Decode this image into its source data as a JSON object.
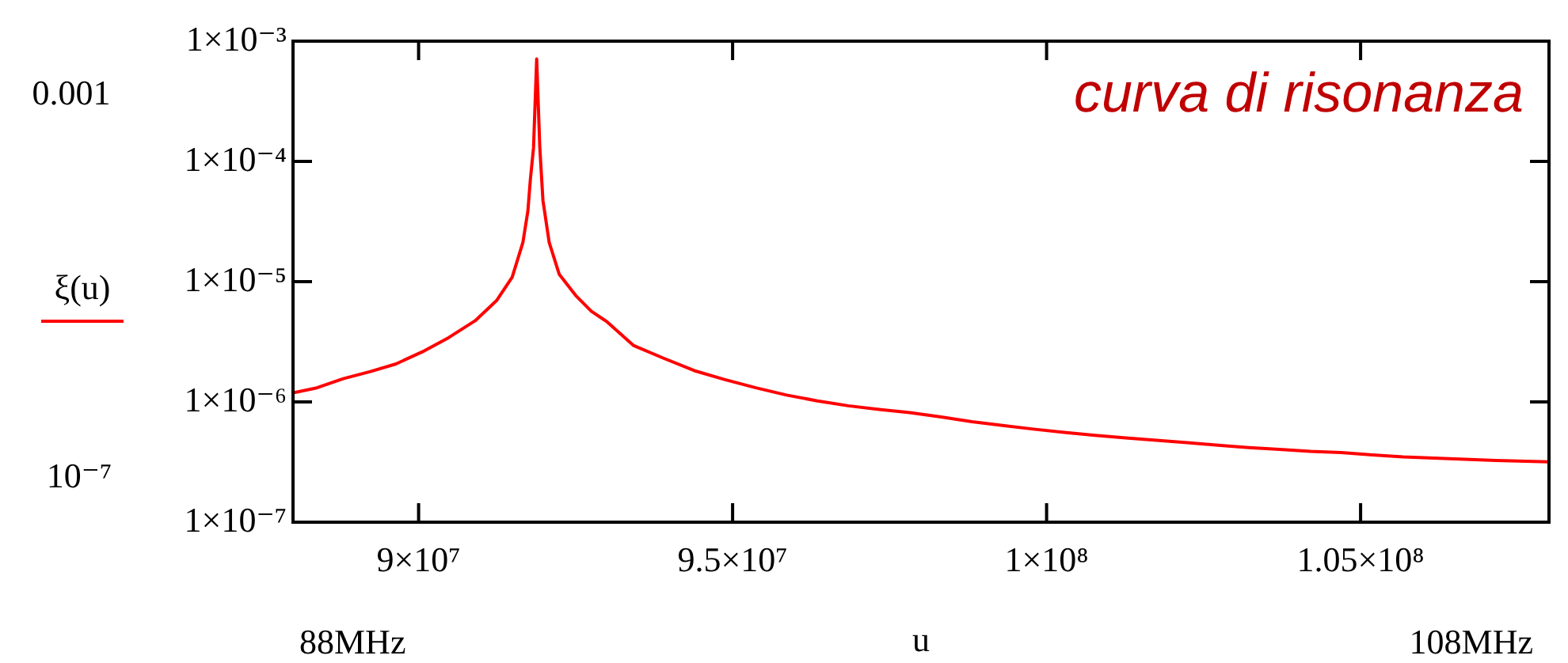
{
  "chart_data": {
    "type": "line",
    "xlabel": "u",
    "annotations": [
      "curva di risonanza",
      "0.001",
      "10⁻⁷",
      "88MHz",
      "108MHz"
    ],
    "log": "y",
    "legend": "left",
    "marker": "none",
    "line_style": "solid",
    "xlim": [
      88000000,
      108000000
    ],
    "xticks": [
      {
        "value": 90000000,
        "label": "9×10⁷"
      },
      {
        "value": 95000000,
        "label": "9.5×10⁷"
      },
      {
        "value": 100000000,
        "label": "1×10⁸"
      },
      {
        "value": 105000000,
        "label": "1.05×10⁸"
      }
    ],
    "ylim": [
      1e-07,
      0.001
    ],
    "yticks": [
      {
        "value": 1e-07,
        "label": "1×10⁻⁷"
      },
      {
        "value": 1e-06,
        "label": "1×10⁻⁶"
      },
      {
        "value": 1e-05,
        "label": "1×10⁻⁵"
      },
      {
        "value": 0.0001,
        "label": "1×10⁻⁴"
      },
      {
        "value": 0.001,
        "label": "1×10⁻³"
      }
    ],
    "x": [
      88000000,
      88380000,
      88800000,
      89220000,
      89640000,
      90060000,
      90480000,
      90900000,
      91240000,
      91490000,
      91660000,
      91740000,
      91780000,
      91830000,
      91880000,
      91930000,
      91980000,
      92080000,
      92240000,
      92500000,
      92750000,
      93000000,
      93420000,
      93900000,
      94390000,
      94880000,
      95370000,
      95860000,
      96350000,
      96840000,
      97330000,
      97820000,
      98320000,
      98810000,
      99300000,
      99790000,
      100280000,
      100770000,
      101260000,
      101750000,
      102240000,
      102730000,
      103220000,
      103710000,
      104200000,
      104690000,
      105190000,
      105680000,
      106170000,
      106660000,
      107150000,
      108000000
    ],
    "series": [
      {
        "name": "ξ(u)",
        "color": "#ff0000",
        "values": [
          1.19e-06,
          1.31e-06,
          1.56e-06,
          1.78e-06,
          2.07e-06,
          2.61e-06,
          3.43e-06,
          4.73e-06,
          6.95e-06,
          1.09e-05,
          2.11e-05,
          3.87e-05,
          7.1e-05,
          0.00013,
          0.00071,
          0.00013,
          4.73e-05,
          2.11e-05,
          1.15e-05,
          7.69e-06,
          5.68e-06,
          4.64e-06,
          2.95e-06,
          2.31e-06,
          1.82e-06,
          1.53e-06,
          1.31e-06,
          1.14e-06,
          1.02e-06,
          9.29e-07,
          8.65e-07,
          8.16e-07,
          7.51e-07,
          6.85e-07,
          6.37e-07,
          5.94e-07,
          5.58e-07,
          5.27e-07,
          5.02e-07,
          4.8e-07,
          4.58e-07,
          4.37e-07,
          4.17e-07,
          4.03e-07,
          3.88e-07,
          3.79e-07,
          3.62e-07,
          3.49e-07,
          3.41e-07,
          3.33e-07,
          3.26e-07,
          3.18e-07
        ]
      }
    ]
  }
}
